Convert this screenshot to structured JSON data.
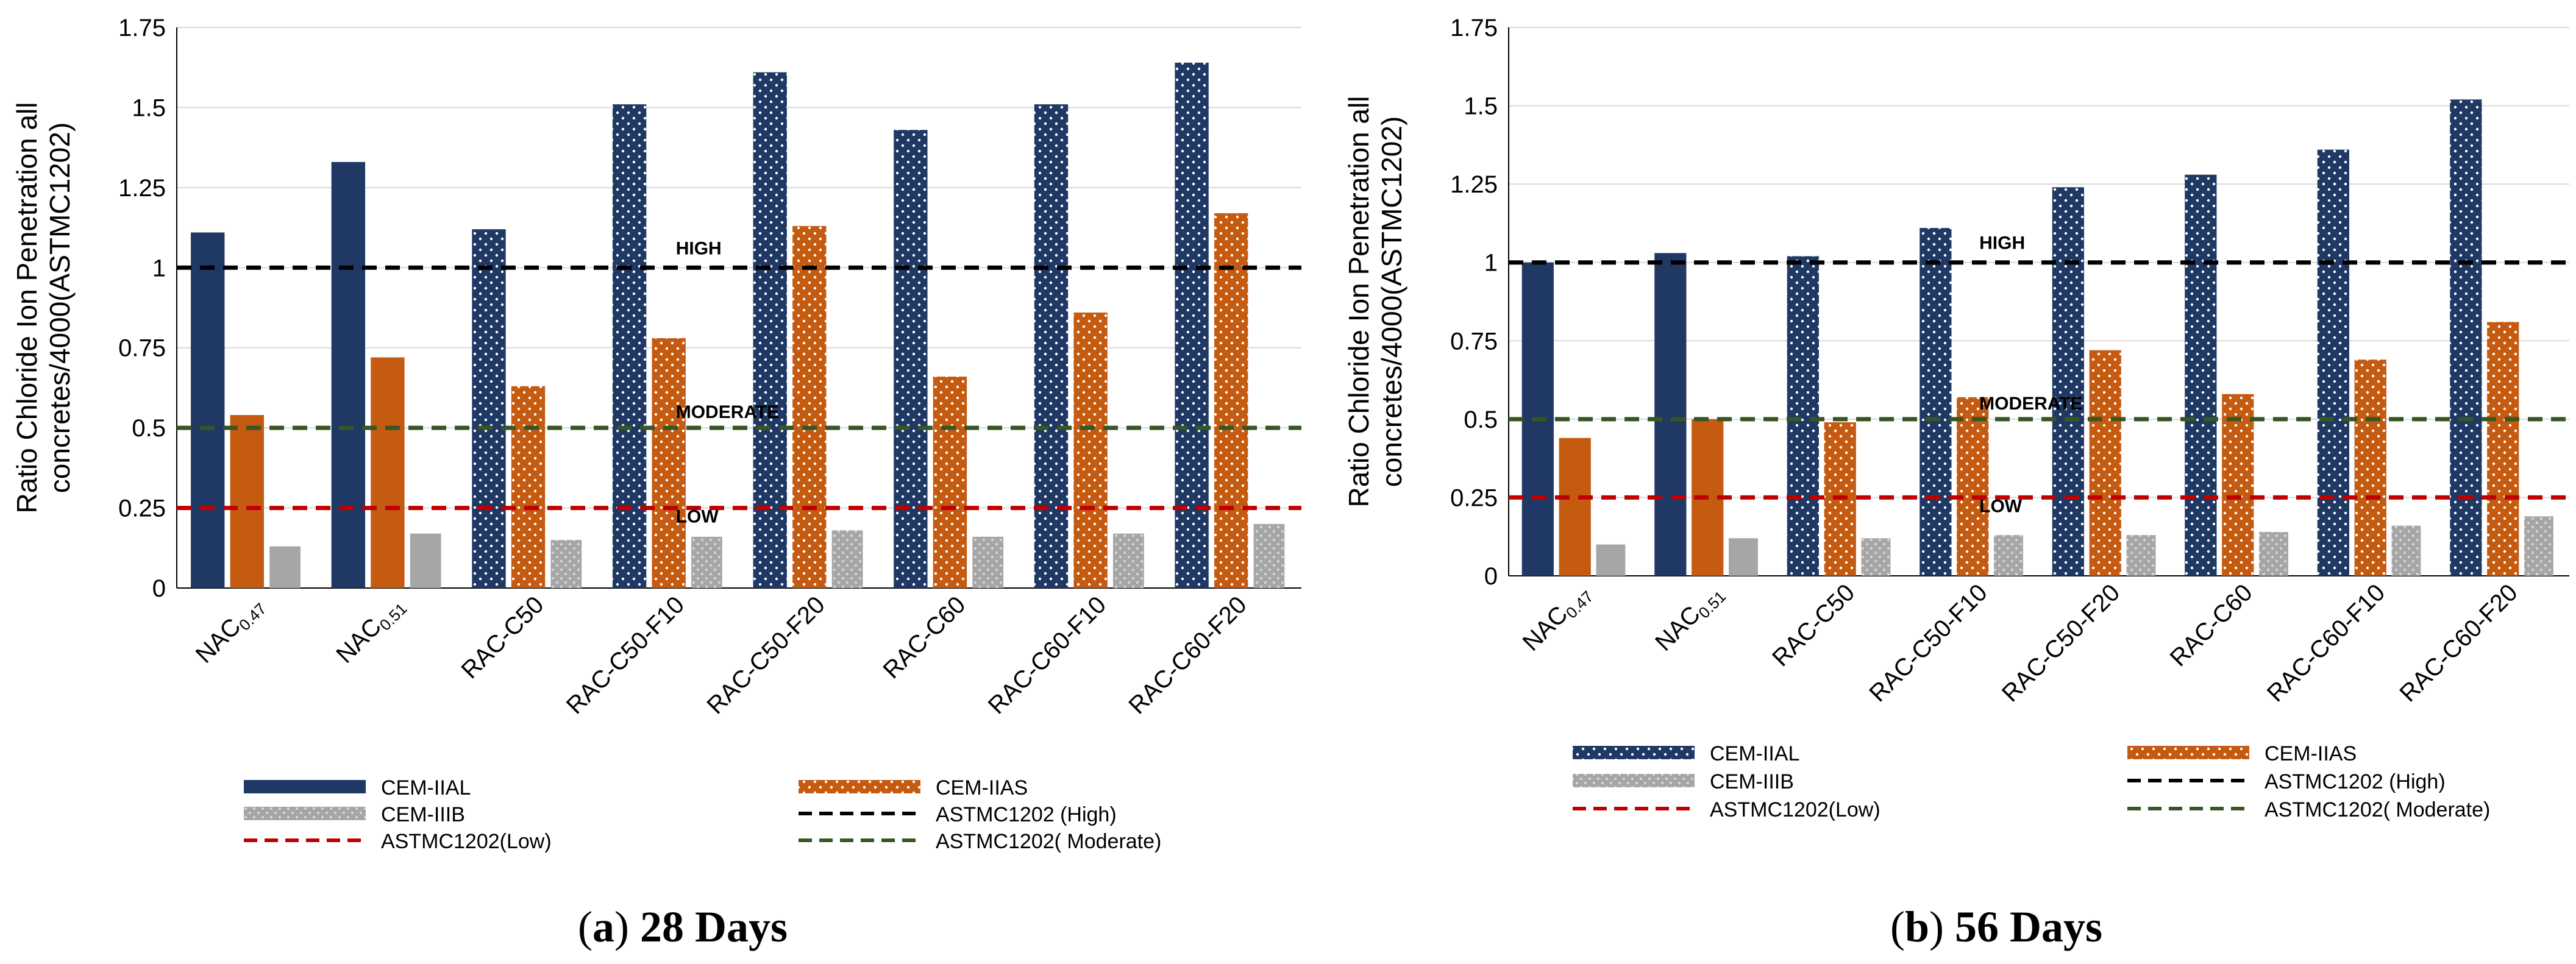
{
  "chart_data": [
    {
      "type": "bar",
      "caption_letter": "a",
      "caption_text": "28 Days",
      "ylabel_line1": "Ratio Chloride Ion Penetration all",
      "ylabel_line2": "concretes/4000(ASTMC1202)",
      "ylim": [
        0,
        1.75
      ],
      "yticks": [
        "0",
        "0.25",
        "0.5",
        "0.75",
        "1",
        "1.25",
        "1.5",
        "1.75"
      ],
      "categories": [
        {
          "base": "NAC",
          "sub": "0.47"
        },
        {
          "base": "NAC",
          "sub": "0.51"
        },
        {
          "base": "RAC-C50",
          "sub": ""
        },
        {
          "base": "RAC-C50-F10",
          "sub": ""
        },
        {
          "base": "RAC-C50-F20",
          "sub": ""
        },
        {
          "base": "RAC-C60",
          "sub": ""
        },
        {
          "base": "RAC-C60-F10",
          "sub": ""
        },
        {
          "base": "RAC-C60-F20",
          "sub": ""
        }
      ],
      "series": [
        {
          "name": "CEM-IIAL",
          "color": "#1f3864",
          "values": [
            1.11,
            1.33,
            1.12,
            1.51,
            1.61,
            1.43,
            1.51,
            1.64
          ]
        },
        {
          "name": "CEM-IIAS",
          "color": "#c55a11",
          "values": [
            0.54,
            0.72,
            0.63,
            0.78,
            1.13,
            0.66,
            0.86,
            1.17
          ]
        },
        {
          "name": "CEM-IIIB",
          "color": "#a6a6a6",
          "values": [
            0.13,
            0.17,
            0.15,
            0.16,
            0.18,
            0.16,
            0.17,
            0.2
          ]
        }
      ],
      "reference_lines": [
        {
          "name": "ASTMC1202 (High)",
          "value": 1.0,
          "color": "#000000",
          "label": "HIGH"
        },
        {
          "name": "ASTMC1202( Moderate)",
          "value": 0.5,
          "color": "#375623",
          "label": "MODERATE"
        },
        {
          "name": "ASTMC1202(Low)",
          "value": 0.25,
          "color": "#c00000",
          "label": "LOW"
        }
      ]
    },
    {
      "type": "bar",
      "caption_letter": "b",
      "caption_text": "56 Days",
      "ylabel_line1": "Ratio Chloride Ion Penetration all",
      "ylabel_line2": "concretes/4000(ASTMC1202)",
      "ylim": [
        0,
        1.75
      ],
      "yticks": [
        "0",
        "0.25",
        "0.5",
        "0.75",
        "1",
        "1.25",
        "1.5",
        "1.75"
      ],
      "categories": [
        {
          "base": "NAC",
          "sub": "0.47"
        },
        {
          "base": "NAC",
          "sub": "0.51"
        },
        {
          "base": "RAC-C50",
          "sub": ""
        },
        {
          "base": "RAC-C50-F10",
          "sub": ""
        },
        {
          "base": "RAC-C50-F20",
          "sub": ""
        },
        {
          "base": "RAC-C60",
          "sub": ""
        },
        {
          "base": "RAC-C60-F10",
          "sub": ""
        },
        {
          "base": "RAC-C60-F20",
          "sub": ""
        }
      ],
      "series": [
        {
          "name": "CEM-IIAL",
          "color": "#1f3864",
          "values": [
            1.0,
            1.03,
            1.02,
            1.11,
            1.24,
            1.28,
            1.36,
            1.52
          ]
        },
        {
          "name": "CEM-IIAS",
          "color": "#c55a11",
          "values": [
            0.44,
            0.5,
            0.49,
            0.57,
            0.72,
            0.58,
            0.69,
            0.81
          ]
        },
        {
          "name": "CEM-IIIB",
          "color": "#a6a6a6",
          "values": [
            0.1,
            0.12,
            0.12,
            0.13,
            0.13,
            0.14,
            0.16,
            0.19
          ]
        }
      ],
      "reference_lines": [
        {
          "name": "ASTMC1202 (High)",
          "value": 1.0,
          "color": "#000000",
          "label": "HIGH"
        },
        {
          "name": "ASTMC1202( Moderate)",
          "value": 0.5,
          "color": "#375623",
          "label": "MODERATE"
        },
        {
          "name": "ASTMC1202(Low)",
          "value": 0.25,
          "color": "#c00000",
          "label": "LOW"
        }
      ]
    }
  ]
}
